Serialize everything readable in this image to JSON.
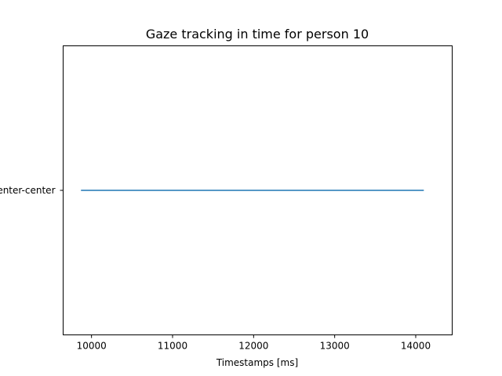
{
  "chart_data": {
    "type": "line",
    "title": "Gaze tracking in time for person 10",
    "xlabel": "Timestamps [ms]",
    "ylabel": "",
    "categories": [
      "center-center"
    ],
    "xlim": [
      9650,
      14450
    ],
    "xticks": [
      10000,
      11000,
      12000,
      13000,
      14000
    ],
    "grid": false,
    "series": [
      {
        "x": [
          9870,
          14100
        ],
        "y": [
          "center-center",
          "center-center"
        ],
        "color": "#1f77b4"
      }
    ]
  }
}
